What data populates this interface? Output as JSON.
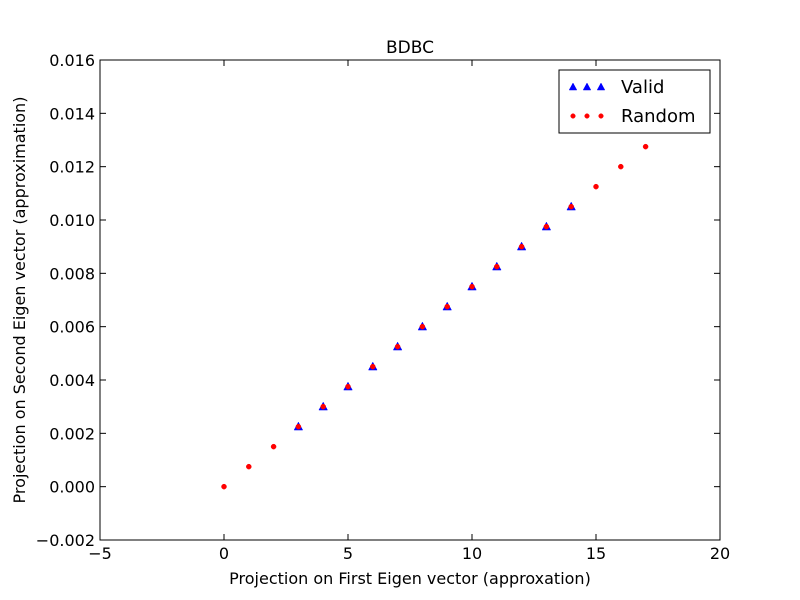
{
  "chart_data": {
    "type": "scatter",
    "title": "BDBC",
    "xlabel": "Projection on First Eigen vector (approxation)",
    "ylabel": "Projection on Second Eigen vector (approximation)",
    "xlim": [
      -5,
      20
    ],
    "ylim": [
      -0.002,
      0.016
    ],
    "xticks": [
      -5,
      0,
      5,
      10,
      15,
      20
    ],
    "xtick_labels": [
      "−5",
      "0",
      "5",
      "10",
      "15",
      "20"
    ],
    "yticks": [
      -0.002,
      0.0,
      0.002,
      0.004,
      0.006,
      0.008,
      0.01,
      0.012,
      0.014,
      0.016
    ],
    "ytick_labels": [
      "−0.002",
      "0.000",
      "0.002",
      "0.004",
      "0.006",
      "0.008",
      "0.010",
      "0.012",
      "0.014",
      "0.016"
    ],
    "grid": false,
    "legend_position": "top-right",
    "series": [
      {
        "name": "Valid",
        "marker": "triangle",
        "color": "#0000ff",
        "x": [
          3,
          4,
          5,
          6,
          7,
          8,
          9,
          10,
          11,
          12,
          13,
          14
        ],
        "y": [
          0.00225,
          0.003,
          0.00375,
          0.0045,
          0.00525,
          0.006,
          0.00675,
          0.0075,
          0.00825,
          0.009,
          0.00975,
          0.0105
        ]
      },
      {
        "name": "Random",
        "marker": "circle",
        "color": "#ff0000",
        "x": [
          0,
          1,
          2,
          3,
          4,
          5,
          6,
          7,
          8,
          9,
          10,
          11,
          12,
          13,
          14,
          15,
          16,
          17
        ],
        "y": [
          0.0,
          0.00075,
          0.0015,
          0.00225,
          0.003,
          0.00375,
          0.0045,
          0.00525,
          0.006,
          0.00675,
          0.0075,
          0.00825,
          0.009,
          0.00975,
          0.0105,
          0.01125,
          0.012,
          0.01275
        ]
      }
    ]
  }
}
